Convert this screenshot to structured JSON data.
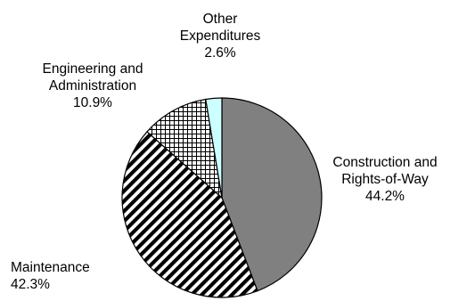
{
  "chart_data": {
    "type": "pie",
    "title": "",
    "slices": [
      {
        "label_lines": [
          "Construction and",
          "Rights-of-Way"
        ],
        "value": 44.2,
        "value_label": "44.2%",
        "fill": "#808080",
        "pattern": "solid"
      },
      {
        "label_lines": [
          "Maintenance"
        ],
        "value": 42.3,
        "value_label": "42.3%",
        "fill": "#ffffff",
        "pattern": "diagonal-stripes"
      },
      {
        "label_lines": [
          "Engineering and",
          "Administration"
        ],
        "value": 10.9,
        "value_label": "10.9%",
        "fill": "#ffffff",
        "pattern": "crosshatch"
      },
      {
        "label_lines": [
          "Other",
          "Expenditures"
        ],
        "value": 2.6,
        "value_label": "2.6%",
        "fill": "#ccffff",
        "pattern": "solid"
      }
    ],
    "start_angle": "12 o'clock",
    "direction": "clockwise",
    "legend": "none"
  }
}
